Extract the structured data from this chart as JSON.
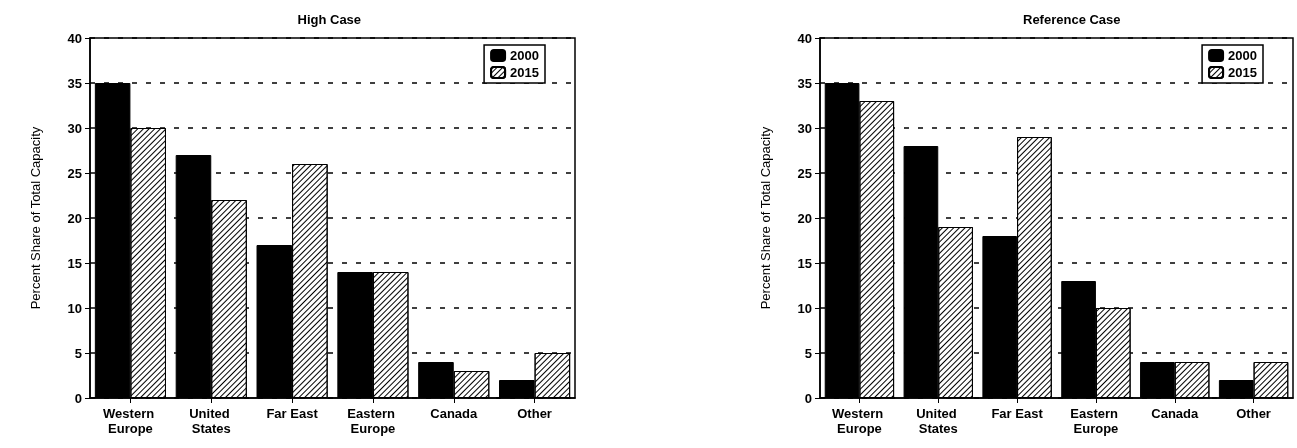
{
  "chart_data": [
    {
      "type": "bar",
      "title": "High Case",
      "ylabel": "Percent Share of Total Capacity",
      "categories": [
        "Western Europe",
        "United States",
        "Far East",
        "Eastern Europe",
        "Canada",
        "Other"
      ],
      "series": [
        {
          "name": "2000",
          "color": "#000000",
          "values": [
            35,
            27,
            17,
            14,
            4,
            2
          ]
        },
        {
          "name": "2015",
          "color": "#ffffff",
          "values": [
            30,
            22,
            26,
            14,
            3,
            5
          ]
        }
      ],
      "ylim": [
        0,
        40
      ],
      "yticks": [
        0,
        5,
        10,
        15,
        20,
        25,
        30,
        35,
        40
      ],
      "grid": "y",
      "legend": "top right"
    },
    {
      "type": "bar",
      "title": "Reference Case",
      "ylabel": "Percent Share of Total Capacity",
      "categories": [
        "Western Europe",
        "United States",
        "Far East",
        "Eastern Europe",
        "Canada",
        "Other"
      ],
      "series": [
        {
          "name": "2000",
          "color": "#000000",
          "values": [
            35,
            28,
            18,
            13,
            4,
            2
          ]
        },
        {
          "name": "2015",
          "color": "#ffffff",
          "values": [
            33,
            19,
            29,
            10,
            4,
            4
          ]
        }
      ],
      "ylim": [
        0,
        40
      ],
      "yticks": [
        0,
        5,
        10,
        15,
        20,
        25,
        30,
        35,
        40
      ],
      "grid": "y",
      "legend": "top right"
    }
  ]
}
